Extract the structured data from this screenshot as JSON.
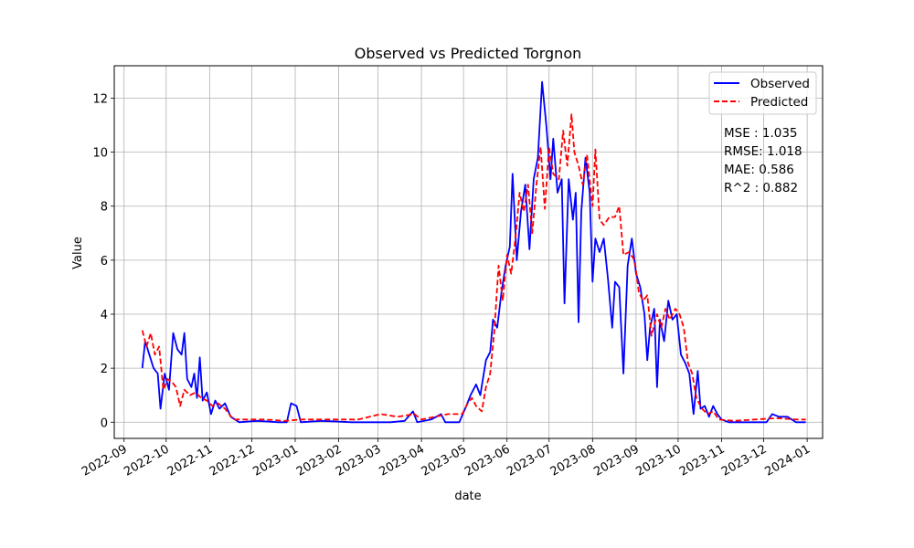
{
  "chart_data": {
    "type": "line",
    "title": "Observed vs Predicted Torgnon",
    "xlabel": "date",
    "ylabel": "Value",
    "xlim": [
      "2022-08-25",
      "2024-01-12"
    ],
    "ylim": [
      -0.6,
      13.2
    ],
    "x_ticks": [
      "2022-09",
      "2022-10",
      "2022-11",
      "2022-12",
      "2023-01",
      "2023-02",
      "2023-03",
      "2023-04",
      "2023-05",
      "2023-06",
      "2023-07",
      "2023-08",
      "2023-09",
      "2023-10",
      "2023-11",
      "2023-12",
      "2024-01"
    ],
    "y_ticks": [
      0,
      2,
      4,
      6,
      8,
      10,
      12
    ],
    "grid": true,
    "legend_position": "top-right",
    "series": [
      {
        "name": "Observed",
        "color": "#0000ff",
        "style": "solid",
        "points": [
          [
            "2022-09-14",
            2.0
          ],
          [
            "2022-09-16",
            3.0
          ],
          [
            "2022-09-19",
            2.5
          ],
          [
            "2022-09-22",
            2.0
          ],
          [
            "2022-09-25",
            1.8
          ],
          [
            "2022-09-27",
            0.5
          ],
          [
            "2022-09-30",
            1.8
          ],
          [
            "2022-10-03",
            1.2
          ],
          [
            "2022-10-06",
            3.3
          ],
          [
            "2022-10-09",
            2.7
          ],
          [
            "2022-10-12",
            2.5
          ],
          [
            "2022-10-14",
            3.3
          ],
          [
            "2022-10-16",
            1.6
          ],
          [
            "2022-10-19",
            1.3
          ],
          [
            "2022-10-21",
            1.8
          ],
          [
            "2022-10-23",
            0.9
          ],
          [
            "2022-10-25",
            2.4
          ],
          [
            "2022-10-27",
            0.8
          ],
          [
            "2022-10-30",
            1.1
          ],
          [
            "2022-11-02",
            0.3
          ],
          [
            "2022-11-05",
            0.8
          ],
          [
            "2022-11-08",
            0.5
          ],
          [
            "2022-11-12",
            0.7
          ],
          [
            "2022-11-16",
            0.2
          ],
          [
            "2022-11-22",
            0.0
          ],
          [
            "2022-12-05",
            0.05
          ],
          [
            "2022-12-20",
            0.0
          ],
          [
            "2022-12-26",
            0.0
          ],
          [
            "2022-12-29",
            0.7
          ],
          [
            "2023-01-02",
            0.6
          ],
          [
            "2023-01-05",
            0.0
          ],
          [
            "2023-01-20",
            0.05
          ],
          [
            "2023-02-10",
            0.0
          ],
          [
            "2023-03-10",
            0.0
          ],
          [
            "2023-03-20",
            0.05
          ],
          [
            "2023-03-26",
            0.4
          ],
          [
            "2023-03-29",
            0.0
          ],
          [
            "2023-04-08",
            0.1
          ],
          [
            "2023-04-15",
            0.3
          ],
          [
            "2023-04-18",
            0.0
          ],
          [
            "2023-04-28",
            0.0
          ],
          [
            "2023-05-03",
            0.6
          ],
          [
            "2023-05-06",
            1.0
          ],
          [
            "2023-05-10",
            1.4
          ],
          [
            "2023-05-13",
            1.0
          ],
          [
            "2023-05-17",
            2.3
          ],
          [
            "2023-05-20",
            2.6
          ],
          [
            "2023-05-22",
            3.8
          ],
          [
            "2023-05-25",
            3.5
          ],
          [
            "2023-05-28",
            4.8
          ],
          [
            "2023-05-31",
            5.8
          ],
          [
            "2023-06-03",
            6.5
          ],
          [
            "2023-06-05",
            9.2
          ],
          [
            "2023-06-08",
            6.0
          ],
          [
            "2023-06-11",
            7.8
          ],
          [
            "2023-06-14",
            8.8
          ],
          [
            "2023-06-17",
            6.4
          ],
          [
            "2023-06-20",
            9.0
          ],
          [
            "2023-06-23",
            9.8
          ],
          [
            "2023-06-26",
            12.6
          ],
          [
            "2023-06-29",
            11.0
          ],
          [
            "2023-07-02",
            9.0
          ],
          [
            "2023-07-04",
            10.5
          ],
          [
            "2023-07-07",
            8.5
          ],
          [
            "2023-07-10",
            9.0
          ],
          [
            "2023-07-12",
            4.4
          ],
          [
            "2023-07-15",
            9.0
          ],
          [
            "2023-07-18",
            7.5
          ],
          [
            "2023-07-20",
            8.5
          ],
          [
            "2023-07-22",
            3.7
          ],
          [
            "2023-07-24",
            7.8
          ],
          [
            "2023-07-27",
            9.8
          ],
          [
            "2023-07-30",
            8.5
          ],
          [
            "2023-08-01",
            5.2
          ],
          [
            "2023-08-03",
            6.8
          ],
          [
            "2023-08-06",
            6.3
          ],
          [
            "2023-08-09",
            6.8
          ],
          [
            "2023-08-12",
            5.3
          ],
          [
            "2023-08-15",
            3.5
          ],
          [
            "2023-08-17",
            5.2
          ],
          [
            "2023-08-20",
            5.0
          ],
          [
            "2023-08-23",
            1.8
          ],
          [
            "2023-08-26",
            5.8
          ],
          [
            "2023-08-29",
            6.8
          ],
          [
            "2023-09-01",
            5.5
          ],
          [
            "2023-09-04",
            5.0
          ],
          [
            "2023-09-07",
            4.0
          ],
          [
            "2023-09-09",
            2.3
          ],
          [
            "2023-09-11",
            3.5
          ],
          [
            "2023-09-14",
            4.2
          ],
          [
            "2023-09-16",
            1.3
          ],
          [
            "2023-09-18",
            3.8
          ],
          [
            "2023-09-21",
            3.0
          ],
          [
            "2023-09-24",
            4.5
          ],
          [
            "2023-09-27",
            3.8
          ],
          [
            "2023-09-30",
            4.0
          ],
          [
            "2023-10-03",
            2.5
          ],
          [
            "2023-10-06",
            2.2
          ],
          [
            "2023-10-09",
            1.8
          ],
          [
            "2023-10-12",
            0.3
          ],
          [
            "2023-10-15",
            1.9
          ],
          [
            "2023-10-17",
            0.5
          ],
          [
            "2023-10-20",
            0.6
          ],
          [
            "2023-10-23",
            0.2
          ],
          [
            "2023-10-26",
            0.6
          ],
          [
            "2023-10-29",
            0.3
          ],
          [
            "2023-11-01",
            0.1
          ],
          [
            "2023-11-06",
            0.0
          ],
          [
            "2023-11-20",
            0.0
          ],
          [
            "2023-12-03",
            0.0
          ],
          [
            "2023-12-07",
            0.3
          ],
          [
            "2023-12-12",
            0.2
          ],
          [
            "2023-12-18",
            0.2
          ],
          [
            "2023-12-24",
            0.0
          ],
          [
            "2023-12-31",
            0.0
          ]
        ]
      },
      {
        "name": "Predicted",
        "color": "#ff0000",
        "style": "dashed",
        "points": [
          [
            "2022-09-14",
            3.4
          ],
          [
            "2022-09-17",
            2.8
          ],
          [
            "2022-09-20",
            3.3
          ],
          [
            "2022-09-23",
            2.5
          ],
          [
            "2022-09-26",
            2.8
          ],
          [
            "2022-09-29",
            1.2
          ],
          [
            "2022-10-02",
            1.6
          ],
          [
            "2022-10-05",
            1.5
          ],
          [
            "2022-10-08",
            1.3
          ],
          [
            "2022-10-11",
            0.6
          ],
          [
            "2022-10-14",
            1.2
          ],
          [
            "2022-10-18",
            1.0
          ],
          [
            "2022-10-22",
            1.1
          ],
          [
            "2022-10-26",
            0.9
          ],
          [
            "2022-10-30",
            0.8
          ],
          [
            "2022-11-03",
            0.6
          ],
          [
            "2022-11-07",
            0.7
          ],
          [
            "2022-11-12",
            0.5
          ],
          [
            "2022-11-18",
            0.1
          ],
          [
            "2022-12-10",
            0.1
          ],
          [
            "2022-12-25",
            0.05
          ],
          [
            "2023-01-05",
            0.1
          ],
          [
            "2023-02-15",
            0.1
          ],
          [
            "2023-03-03",
            0.3
          ],
          [
            "2023-03-15",
            0.2
          ],
          [
            "2023-03-27",
            0.3
          ],
          [
            "2023-04-01",
            0.1
          ],
          [
            "2023-04-20",
            0.3
          ],
          [
            "2023-04-30",
            0.3
          ],
          [
            "2023-05-04",
            0.7
          ],
          [
            "2023-05-07",
            0.9
          ],
          [
            "2023-05-10",
            0.6
          ],
          [
            "2023-05-14",
            0.4
          ],
          [
            "2023-05-17",
            1.3
          ],
          [
            "2023-05-20",
            1.8
          ],
          [
            "2023-05-23",
            3.4
          ],
          [
            "2023-05-26",
            5.8
          ],
          [
            "2023-05-29",
            4.5
          ],
          [
            "2023-06-01",
            6.2
          ],
          [
            "2023-06-04",
            5.5
          ],
          [
            "2023-06-07",
            6.8
          ],
          [
            "2023-06-10",
            8.5
          ],
          [
            "2023-06-13",
            7.8
          ],
          [
            "2023-06-16",
            8.8
          ],
          [
            "2023-06-19",
            7.0
          ],
          [
            "2023-06-22",
            8.8
          ],
          [
            "2023-06-25",
            10.2
          ],
          [
            "2023-06-28",
            7.9
          ],
          [
            "2023-07-01",
            10.2
          ],
          [
            "2023-07-04",
            9.2
          ],
          [
            "2023-07-08",
            9.0
          ],
          [
            "2023-07-11",
            10.8
          ],
          [
            "2023-07-14",
            9.5
          ],
          [
            "2023-07-17",
            11.4
          ],
          [
            "2023-07-19",
            10.0
          ],
          [
            "2023-07-22",
            9.5
          ],
          [
            "2023-07-25",
            8.8
          ],
          [
            "2023-07-28",
            9.9
          ],
          [
            "2023-08-01",
            8.0
          ],
          [
            "2023-08-03",
            10.1
          ],
          [
            "2023-08-06",
            7.5
          ],
          [
            "2023-08-09",
            7.3
          ],
          [
            "2023-08-13",
            7.6
          ],
          [
            "2023-08-17",
            7.6
          ],
          [
            "2023-08-20",
            8.0
          ],
          [
            "2023-08-23",
            6.2
          ],
          [
            "2023-08-27",
            6.3
          ],
          [
            "2023-08-31",
            6.0
          ],
          [
            "2023-09-03",
            4.8
          ],
          [
            "2023-09-06",
            4.5
          ],
          [
            "2023-09-09",
            4.7
          ],
          [
            "2023-09-12",
            3.2
          ],
          [
            "2023-09-16",
            4.0
          ],
          [
            "2023-09-19",
            3.5
          ],
          [
            "2023-09-22",
            4.2
          ],
          [
            "2023-09-25",
            3.8
          ],
          [
            "2023-09-29",
            4.2
          ],
          [
            "2023-10-02",
            4.0
          ],
          [
            "2023-10-05",
            3.5
          ],
          [
            "2023-10-08",
            2.2
          ],
          [
            "2023-10-11",
            1.8
          ],
          [
            "2023-10-14",
            0.9
          ],
          [
            "2023-10-18",
            0.5
          ],
          [
            "2023-10-22",
            0.3
          ],
          [
            "2023-10-26",
            0.4
          ],
          [
            "2023-10-30",
            0.1
          ],
          [
            "2023-11-10",
            0.05
          ],
          [
            "2023-11-25",
            0.1
          ],
          [
            "2023-12-10",
            0.15
          ],
          [
            "2023-12-24",
            0.1
          ],
          [
            "2023-12-31",
            0.1
          ]
        ]
      }
    ],
    "metrics": [
      {
        "label": "MSE : 1.035"
      },
      {
        "label": "RMSE: 1.018"
      },
      {
        "label": "MAE: 0.586"
      },
      {
        "label": "R^2 : 0.882"
      }
    ]
  }
}
